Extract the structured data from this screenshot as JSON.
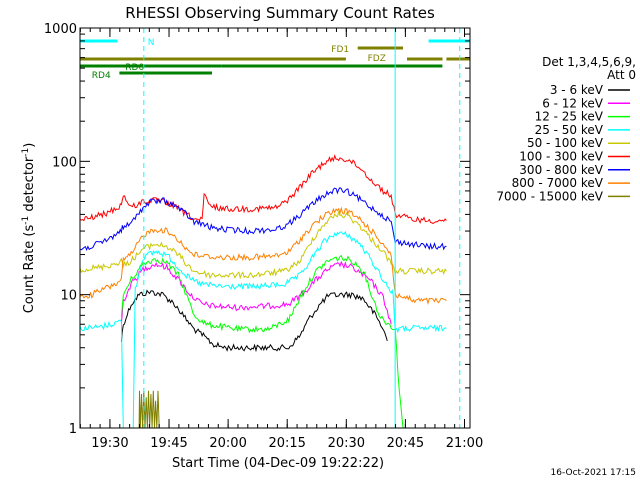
{
  "chart_data": {
    "type": "line",
    "title": "RHESSI Observing Summary Count Rates",
    "xlabel": "Start Time (04-Dec-09 19:22:22)",
    "ylabel_main": "Count Rate (s",
    "ylabel_sup1": "-1",
    "ylabel_mid": " detector",
    "ylabel_sup2": "-1",
    "ylabel_end": ")",
    "y_scale": "log",
    "ylim": [
      1,
      1000
    ],
    "xlim_minutes": [
      0,
      99
    ],
    "x_ticks": [
      {
        "label": "19:30",
        "t": 7.6
      },
      {
        "label": "19:45",
        "t": 22.6
      },
      {
        "label": "20:00",
        "t": 37.6
      },
      {
        "label": "20:15",
        "t": 52.6
      },
      {
        "label": "20:30",
        "t": 67.6
      },
      {
        "label": "20:45",
        "t": 82.6
      },
      {
        "label": "21:00",
        "t": 97.6
      }
    ],
    "y_ticks": [
      {
        "label": "1000",
        "v": 1000
      },
      {
        "label": "100",
        "v": 100
      },
      {
        "label": "10",
        "v": 10
      },
      {
        "label": "1",
        "v": 1
      }
    ],
    "legend_header": [
      "Det 1,3,4,5,6,9,",
      "Att 0"
    ],
    "legend_placement": "right",
    "footer_stamp": "16-Oct-2021 17:15",
    "flags": [
      {
        "label": "N",
        "color": "#00ffff"
      },
      {
        "label": "FD1",
        "color": "#808000"
      },
      {
        "label": "FDZ",
        "color": "#808000"
      },
      {
        "label": "RD0",
        "color": "#008000"
      },
      {
        "label": "RD4",
        "color": "#008000"
      }
    ],
    "series": [
      {
        "name": "3 - 6 keV",
        "color": "#000000",
        "points": [
          [
            10.5,
            4.5
          ],
          [
            11,
            6
          ],
          [
            13,
            8.5
          ],
          [
            15,
            10
          ],
          [
            18,
            10.5
          ],
          [
            21,
            10
          ],
          [
            24,
            8.5
          ],
          [
            27,
            6.5
          ],
          [
            29,
            5.5
          ],
          [
            31,
            5
          ],
          [
            34,
            4.2
          ],
          [
            37,
            4
          ],
          [
            45,
            4
          ],
          [
            53,
            4
          ],
          [
            56,
            5
          ],
          [
            58,
            6.5
          ],
          [
            61,
            8.5
          ],
          [
            63,
            9.8
          ],
          [
            66,
            10
          ],
          [
            69,
            10
          ],
          [
            72,
            9.3
          ],
          [
            75,
            7
          ],
          [
            77,
            5.5
          ],
          [
            78,
            4.5
          ]
        ]
      },
      {
        "name": "6 - 12 keV",
        "color": "#ff00ff",
        "points": [
          [
            10.5,
            6
          ],
          [
            11,
            9
          ],
          [
            13,
            12
          ],
          [
            16,
            15.5
          ],
          [
            19,
            17
          ],
          [
            22,
            16
          ],
          [
            25,
            13
          ],
          [
            28,
            10
          ],
          [
            31,
            8.5
          ],
          [
            34,
            8.2
          ],
          [
            40,
            8
          ],
          [
            47,
            8.2
          ],
          [
            53,
            8.5
          ],
          [
            57,
            10.5
          ],
          [
            60,
            13
          ],
          [
            63,
            15.5
          ],
          [
            66,
            17
          ],
          [
            69,
            16
          ],
          [
            72,
            14
          ],
          [
            74,
            12.5
          ],
          [
            77,
            9.5
          ],
          [
            79,
            6
          ]
        ]
      },
      {
        "name": "12 - 25 keV",
        "color": "#00ff00",
        "points": [
          [
            10.5,
            6.5
          ],
          [
            11,
            10
          ],
          [
            13,
            13
          ],
          [
            16,
            17
          ],
          [
            19,
            18.5
          ],
          [
            22,
            17.5
          ],
          [
            25,
            14
          ],
          [
            27,
            10
          ],
          [
            29,
            7
          ],
          [
            32,
            6
          ],
          [
            40,
            5.5
          ],
          [
            48,
            5.5
          ],
          [
            53,
            6.5
          ],
          [
            57,
            11
          ],
          [
            60,
            15
          ],
          [
            63,
            18
          ],
          [
            66,
            19
          ],
          [
            69,
            18
          ],
          [
            72,
            15
          ],
          [
            74,
            10
          ],
          [
            76,
            7
          ],
          [
            77,
            6.5
          ],
          [
            80,
            5.5
          ],
          [
            81,
            2
          ],
          [
            82,
            1
          ]
        ]
      },
      {
        "name": "25 - 50 keV",
        "color": "#00ffff",
        "points": [
          [
            0,
            5.6
          ],
          [
            5,
            5.7
          ],
          [
            8,
            6
          ],
          [
            9.5,
            6.2
          ],
          [
            10.5,
            6.5
          ],
          [
            11,
            1
          ],
          [
            13.5,
            1
          ],
          [
            14,
            11
          ],
          [
            16,
            19
          ],
          [
            19,
            21
          ],
          [
            22,
            20
          ],
          [
            25,
            16
          ],
          [
            28,
            13
          ],
          [
            31,
            12
          ],
          [
            36,
            11.5
          ],
          [
            45,
            11.5
          ],
          [
            52,
            12
          ],
          [
            56,
            14
          ],
          [
            59,
            19
          ],
          [
            62,
            25
          ],
          [
            65,
            29
          ],
          [
            68,
            28
          ],
          [
            71,
            24
          ],
          [
            74,
            18
          ],
          [
            77,
            13
          ],
          [
            79,
            10.5
          ],
          [
            79.5,
            10
          ],
          [
            80,
            5.5
          ],
          [
            85,
            5.6
          ],
          [
            90,
            5.6
          ],
          [
            93,
            5.6
          ]
        ]
      },
      {
        "name": "50 - 100 keV",
        "color": "#c8c800",
        "points": [
          [
            0,
            15.5
          ],
          [
            5,
            16
          ],
          [
            9,
            17
          ],
          [
            10.5,
            18
          ],
          [
            11,
            16.5
          ],
          [
            13,
            18
          ],
          [
            16,
            22
          ],
          [
            19,
            24
          ],
          [
            22,
            23
          ],
          [
            25,
            20
          ],
          [
            27,
            17
          ],
          [
            29,
            15
          ],
          [
            33,
            14
          ],
          [
            37,
            14
          ],
          [
            44,
            14
          ],
          [
            52,
            15
          ],
          [
            56,
            18
          ],
          [
            59,
            26
          ],
          [
            62,
            34
          ],
          [
            65,
            40
          ],
          [
            68,
            39
          ],
          [
            71,
            33
          ],
          [
            74,
            26
          ],
          [
            77,
            21
          ],
          [
            79,
            17
          ],
          [
            80,
            15
          ],
          [
            85,
            15
          ],
          [
            93,
            15
          ]
        ]
      },
      {
        "name": "100 - 300 keV",
        "color": "#ff0000",
        "points": [
          [
            0,
            36
          ],
          [
            3,
            38
          ],
          [
            6,
            40
          ],
          [
            9,
            44
          ],
          [
            10.5,
            47
          ],
          [
            11,
            56
          ],
          [
            13,
            45
          ],
          [
            16,
            50
          ],
          [
            19,
            51
          ],
          [
            22,
            49
          ],
          [
            25,
            44
          ],
          [
            27,
            40
          ],
          [
            29,
            37
          ],
          [
            31,
            36
          ],
          [
            31.5,
            56
          ],
          [
            33,
            46
          ],
          [
            37,
            44
          ],
          [
            44,
            44
          ],
          [
            50,
            45
          ],
          [
            53,
            52
          ],
          [
            56,
            65
          ],
          [
            59,
            82
          ],
          [
            62,
            98
          ],
          [
            65,
            106
          ],
          [
            68,
            103
          ],
          [
            71,
            90
          ],
          [
            74,
            72
          ],
          [
            77,
            60
          ],
          [
            79,
            55
          ],
          [
            80,
            40
          ],
          [
            84,
            37
          ],
          [
            88,
            36
          ],
          [
            93,
            36
          ]
        ]
      },
      {
        "name": "300 - 800 keV",
        "color": "#0000ff",
        "points": [
          [
            0,
            22
          ],
          [
            3,
            23
          ],
          [
            6,
            25
          ],
          [
            9,
            28
          ],
          [
            10.5,
            31
          ],
          [
            11,
            32
          ],
          [
            13,
            34
          ],
          [
            15,
            42
          ],
          [
            18,
            50
          ],
          [
            21,
            51
          ],
          [
            24,
            47
          ],
          [
            27,
            40
          ],
          [
            29,
            35
          ],
          [
            31,
            34
          ],
          [
            33,
            32
          ],
          [
            36,
            31
          ],
          [
            43,
            30
          ],
          [
            50,
            31
          ],
          [
            53,
            34
          ],
          [
            56,
            40
          ],
          [
            59,
            48
          ],
          [
            62,
            56
          ],
          [
            65,
            61
          ],
          [
            68,
            59
          ],
          [
            71,
            52
          ],
          [
            74,
            45
          ],
          [
            77,
            39
          ],
          [
            79,
            35
          ],
          [
            80,
            25
          ],
          [
            84,
            24
          ],
          [
            88,
            23
          ],
          [
            93,
            23
          ]
        ]
      },
      {
        "name": "800 - 7000 keV",
        "color": "#ff8000",
        "points": [
          [
            0,
            9.5
          ],
          [
            3,
            10
          ],
          [
            6,
            11
          ],
          [
            9,
            12
          ],
          [
            10.5,
            13
          ],
          [
            11,
            18
          ],
          [
            13,
            20
          ],
          [
            16,
            28
          ],
          [
            19,
            31
          ],
          [
            22,
            30
          ],
          [
            25,
            26
          ],
          [
            27,
            22
          ],
          [
            29,
            20
          ],
          [
            31,
            19.5
          ],
          [
            36,
            19
          ],
          [
            43,
            19
          ],
          [
            50,
            19.5
          ],
          [
            53,
            21
          ],
          [
            56,
            26
          ],
          [
            59,
            33
          ],
          [
            62,
            39
          ],
          [
            65,
            43
          ],
          [
            68,
            42
          ],
          [
            71,
            37
          ],
          [
            74,
            30
          ],
          [
            77,
            24
          ],
          [
            79,
            20
          ],
          [
            80,
            10
          ],
          [
            85,
            9
          ],
          [
            93,
            9
          ]
        ]
      },
      {
        "name": "7000 - 15000 keV",
        "color": "#808000",
        "points": [
          [
            15,
            1
          ],
          [
            15.1,
            1.9
          ],
          [
            15.3,
            1
          ],
          [
            15.6,
            1.8
          ],
          [
            15.9,
            1
          ],
          [
            16.2,
            1.9
          ],
          [
            16.5,
            1
          ],
          [
            16.8,
            1.7
          ],
          [
            17.1,
            1
          ],
          [
            17.4,
            1.9
          ],
          [
            17.7,
            1
          ],
          [
            18,
            1.8
          ],
          [
            18.3,
            1
          ],
          [
            18.6,
            1.9
          ],
          [
            18.9,
            1
          ],
          [
            19.2,
            1.6
          ],
          [
            19.5,
            1
          ],
          [
            19.8,
            1.9
          ],
          [
            20.1,
            1
          ]
        ]
      }
    ]
  }
}
